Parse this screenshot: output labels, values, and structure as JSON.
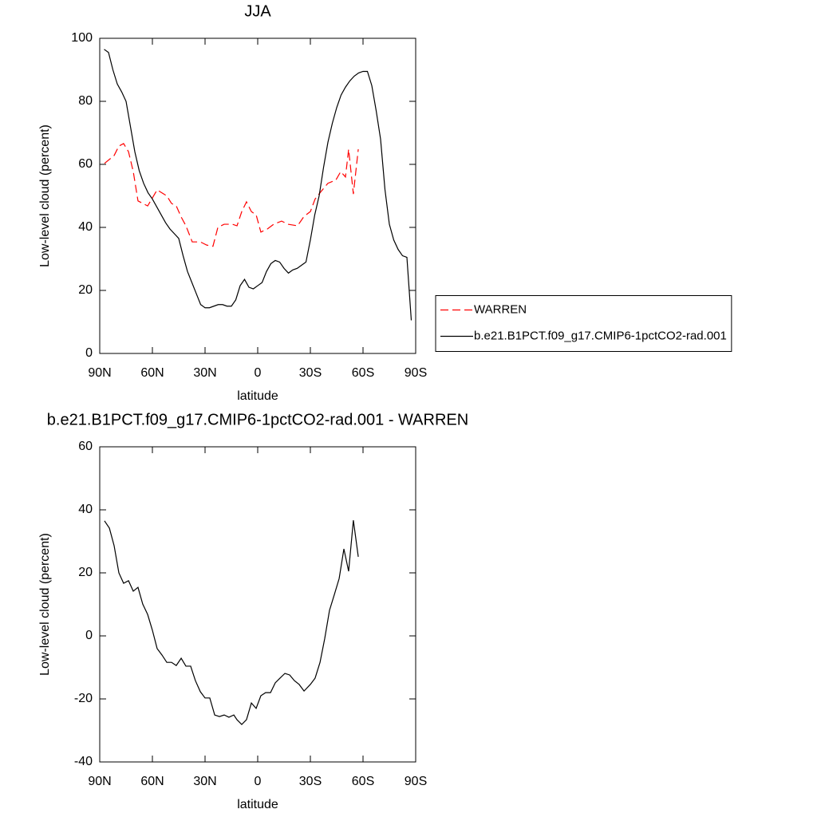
{
  "chart_data": [
    {
      "type": "line",
      "title": "JJA",
      "xlabel": "latitude",
      "ylabel": "Low-level cloud (percent)",
      "xlim": [
        90,
        -90
      ],
      "xticks": [
        {
          "value": 90,
          "label": "90N"
        },
        {
          "value": 60,
          "label": "60N"
        },
        {
          "value": 30,
          "label": "30N"
        },
        0,
        {
          "value": -30,
          "label": "30S"
        },
        {
          "value": -60,
          "label": "60S"
        },
        {
          "value": -90,
          "label": "90S"
        }
      ],
      "ylim": [
        0,
        100
      ],
      "yticks": [
        0,
        20,
        40,
        60,
        80,
        100
      ],
      "legend": "right",
      "series": [
        {
          "name": "WARREN",
          "color": "#ff0000",
          "linestyle": "dashed",
          "x": [
            87.3,
            81.8,
            79.1,
            76.4,
            73.6,
            70.9,
            68.2,
            62.7,
            57.3,
            51.8,
            49.1,
            46.4,
            43.6,
            40.9,
            37.3,
            32.7,
            29.1,
            25.5,
            22.7,
            19.1,
            14.5,
            11.8,
            9.1,
            6.4,
            3.6,
            0.9,
            -1.8,
            -5.5,
            -9.1,
            -13.6,
            -17.3,
            -22.7,
            -26.4,
            -30,
            -32.7,
            -36.4,
            -40,
            -44.5,
            -47.3,
            -50,
            -51.8,
            -54.5,
            -57.3
          ],
          "values": [
            60.3,
            62.8,
            65.8,
            66.6,
            64,
            57.7,
            48.4,
            46.8,
            51.9,
            50,
            47.6,
            46.8,
            43.3,
            40.5,
            35.4,
            35.4,
            34.4,
            34,
            40,
            41,
            41,
            40.5,
            45,
            48.1,
            45,
            44,
            38.5,
            39.5,
            41,
            42,
            41,
            40.5,
            43.5,
            45,
            49,
            51.6,
            54,
            55,
            57.7,
            56,
            64.8,
            50.6,
            64.8
          ]
        },
        {
          "name": "b.e21.B1PCT.f09_g17.CMIP6-1pctCO2-rad.001",
          "color": "#000000",
          "linestyle": "solid",
          "x": [
            87.5,
            85,
            82.5,
            80,
            77.5,
            75,
            72.5,
            70,
            67.5,
            65,
            62.5,
            60,
            57.5,
            55,
            52.5,
            50,
            47.5,
            45,
            42.5,
            40,
            37.5,
            35,
            32.5,
            30,
            27.5,
            25,
            22.5,
            20,
            17.5,
            15,
            12.5,
            10,
            7.5,
            5,
            2.5,
            0,
            -2.5,
            -5,
            -7.5,
            -10,
            -12.5,
            -15,
            -17.5,
            -20,
            -22.5,
            -25,
            -27.5,
            -30,
            -32.5,
            -35,
            -37.5,
            -40,
            -42.5,
            -45,
            -47.5,
            -50,
            -52.5,
            -55,
            -57.5,
            -60,
            -62.5,
            -65,
            -67.5,
            -70,
            -72.5,
            -75,
            -77.5,
            -80,
            -82.5,
            -85,
            -87.5
          ],
          "values": [
            96.5,
            95.5,
            90,
            85.5,
            83,
            80,
            72,
            64,
            58,
            54,
            51,
            49,
            46.5,
            44,
            41.5,
            39.5,
            38,
            36.5,
            31,
            26,
            22.5,
            19,
            15.5,
            14.5,
            14.5,
            15,
            15.5,
            15.5,
            15,
            15,
            17,
            21.5,
            23.5,
            21,
            20.5,
            21.5,
            22.5,
            26,
            28.5,
            29.5,
            29,
            27,
            25.5,
            26.5,
            27,
            28,
            29,
            36,
            44,
            50,
            59,
            67,
            73,
            78,
            82,
            84.5,
            86.5,
            88,
            89,
            89.5,
            89.5,
            85,
            77,
            68,
            52,
            41,
            36,
            33,
            31,
            30.5,
            10.5
          ]
        }
      ]
    },
    {
      "type": "line",
      "title": "b.e21.B1PCT.f09_g17.CMIP6-1pctCO2-rad.001 - WARREN",
      "xlabel": "latitude",
      "ylabel": "Low-level cloud (percent)",
      "xlim": [
        90,
        -90
      ],
      "xticks": [
        {
          "value": 90,
          "label": "90N"
        },
        {
          "value": 60,
          "label": "60N"
        },
        {
          "value": 30,
          "label": "30N"
        },
        0,
        {
          "value": -30,
          "label": "30S"
        },
        {
          "value": -60,
          "label": "60S"
        },
        {
          "value": -90,
          "label": "90S"
        }
      ],
      "ylim": [
        -40,
        60
      ],
      "yticks": [
        -40,
        -20,
        0,
        20,
        40,
        60
      ],
      "color": "#000000",
      "x": [
        87.3,
        84.5,
        81.8,
        79.1,
        76.4,
        73.6,
        70.9,
        68.2,
        65.5,
        62.7,
        60,
        57.3,
        54.5,
        51.8,
        49.1,
        46.4,
        43.6,
        40.9,
        38.2,
        35.5,
        32.7,
        30,
        27.3,
        24.5,
        21.8,
        19.1,
        16.4,
        13.6,
        11.8,
        9.1,
        6.4,
        3.6,
        0.9,
        -1.8,
        -4.5,
        -7.3,
        -10,
        -12.7,
        -15.5,
        -18.2,
        -20.9,
        -23.6,
        -26.4,
        -30,
        -32.7,
        -35.5,
        -38.2,
        -40.9,
        -43.6,
        -46.4,
        -49.1,
        -51.8,
        -54.5,
        -57.3
      ],
      "values": [
        36.5,
        34.2,
        28.6,
        20,
        16.7,
        17.5,
        14.2,
        15.4,
        10.1,
        6.8,
        1.8,
        -4,
        -6.1,
        -8.4,
        -8.4,
        -9.4,
        -7.1,
        -9.6,
        -9.6,
        -14.2,
        -17.7,
        -19.7,
        -19.7,
        -25.1,
        -25.6,
        -25.1,
        -25.8,
        -25.1,
        -26.6,
        -28.1,
        -26.6,
        -21.3,
        -23,
        -19,
        -18,
        -18,
        -14.9,
        -13.4,
        -11.9,
        -12.4,
        -14.2,
        -15.4,
        -17.5,
        -15.4,
        -13.4,
        -8.4,
        -0.8,
        8.1,
        13,
        18.2,
        27.6,
        20.5,
        36.7,
        25.1
      ]
    }
  ]
}
